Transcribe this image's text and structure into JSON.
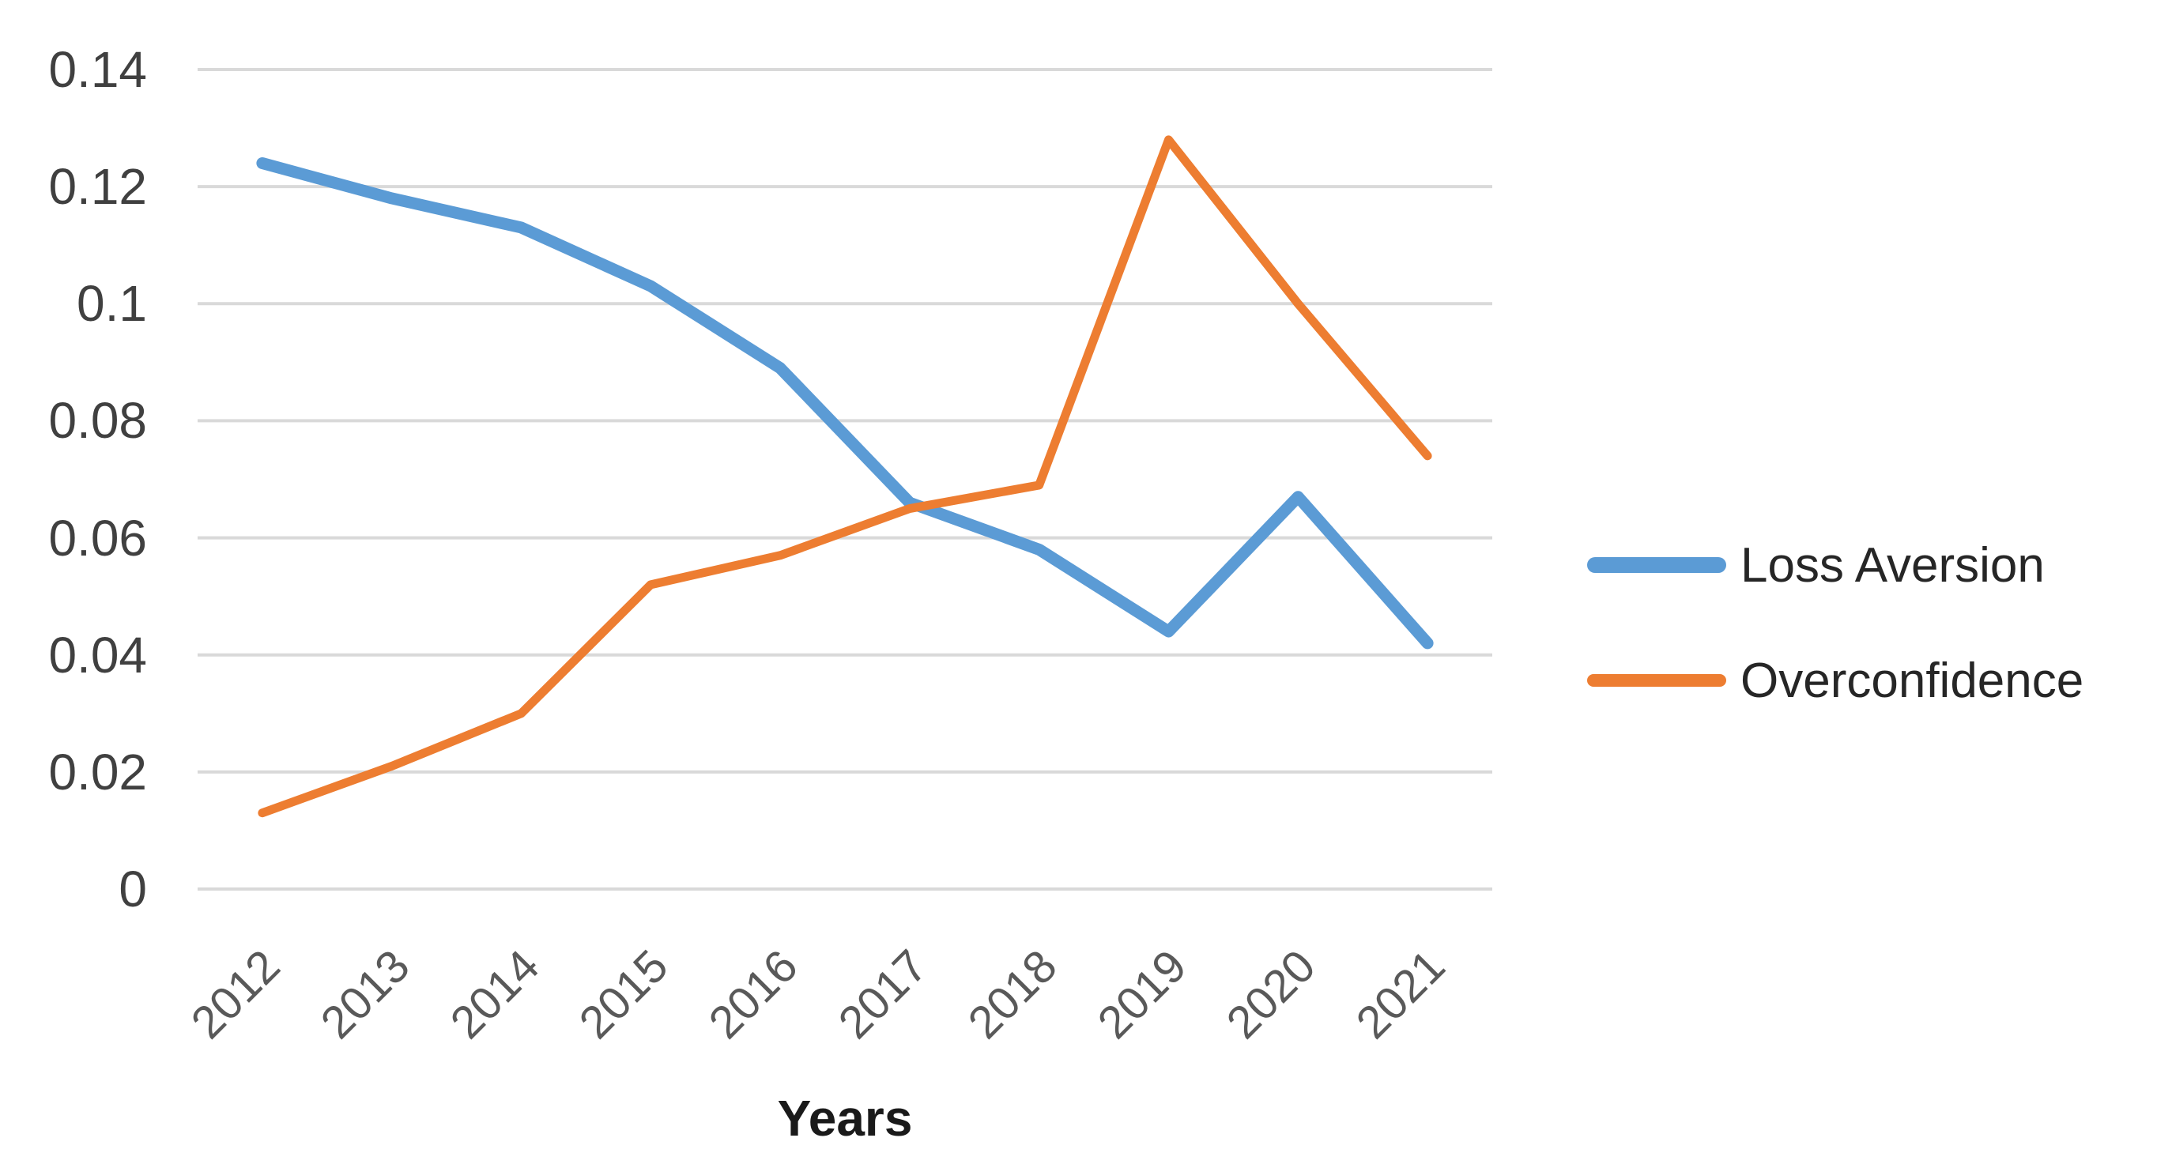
{
  "chart_data": {
    "type": "line",
    "title": "",
    "xlabel": "Years",
    "ylabel": "",
    "categories": [
      "2012",
      "2013",
      "2014",
      "2015",
      "2016",
      "2017",
      "2018",
      "2019",
      "2020",
      "2021"
    ],
    "series": [
      {
        "name": "Loss Aversion",
        "color": "#5B9BD5",
        "values": [
          0.124,
          0.118,
          0.113,
          0.103,
          0.089,
          0.066,
          0.058,
          0.044,
          0.067,
          0.042
        ]
      },
      {
        "name": "Overconfidence",
        "color": "#ED7D31",
        "values": [
          0.013,
          0.021,
          0.03,
          0.052,
          0.057,
          0.065,
          0.069,
          0.128,
          0.1,
          0.074
        ]
      }
    ],
    "ylim": [
      0,
      0.14
    ],
    "yticks": [
      {
        "value": 0,
        "label": "0"
      },
      {
        "value": 0.02,
        "label": "0.02"
      },
      {
        "value": 0.04,
        "label": "0.04"
      },
      {
        "value": 0.06,
        "label": "0.06"
      },
      {
        "value": 0.08,
        "label": "0.08"
      },
      {
        "value": 0.1,
        "label": "0.1"
      },
      {
        "value": 0.12,
        "label": "0.12"
      },
      {
        "value": 0.14,
        "label": "0.14"
      }
    ],
    "grid": "horizontal",
    "grid_color": "#D9D9D9",
    "legend_position": "right"
  }
}
